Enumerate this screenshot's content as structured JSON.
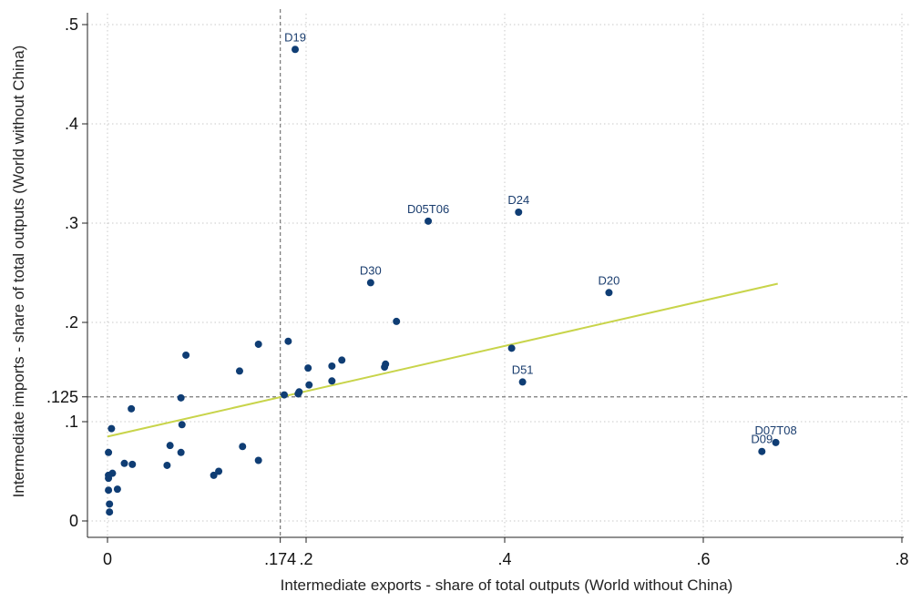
{
  "chart_data": {
    "type": "scatter",
    "xlabel": "Intermediate exports - share of total outputs (World without China)",
    "ylabel": "Intermediate imports - share of total outputs (World without China)",
    "xlim": [
      0,
      0.8
    ],
    "ylim": [
      0,
      0.5
    ],
    "x_ticks": [
      {
        "value": 0,
        "label": "0"
      },
      {
        "value": 0.174,
        "label": ".174"
      },
      {
        "value": 0.2,
        "label": ".2"
      },
      {
        "value": 0.4,
        "label": ".4"
      },
      {
        "value": 0.6,
        "label": ".6"
      },
      {
        "value": 0.8,
        "label": ".8"
      }
    ],
    "y_ticks": [
      {
        "value": 0,
        "label": "0"
      },
      {
        "value": 0.1,
        "label": ".1"
      },
      {
        "value": 0.125,
        "label": ".125"
      },
      {
        "value": 0.2,
        "label": ".2"
      },
      {
        "value": 0.3,
        "label": ".3"
      },
      {
        "value": 0.4,
        "label": ".4"
      },
      {
        "value": 0.5,
        "label": ".5"
      }
    ],
    "grid": true,
    "reference_lines": {
      "x": 0.174,
      "y": 0.125
    },
    "fit_line": {
      "x": [
        0,
        0.675
      ],
      "y": [
        0.085,
        0.239
      ],
      "color": "#c8d44a"
    },
    "point_color": "#0f3d74",
    "points": [
      {
        "x": 0.189,
        "y": 0.475,
        "label": "D19"
      },
      {
        "x": 0.323,
        "y": 0.302,
        "label": "D05T06"
      },
      {
        "x": 0.414,
        "y": 0.311,
        "label": "D24"
      },
      {
        "x": 0.265,
        "y": 0.24,
        "label": "D30"
      },
      {
        "x": 0.505,
        "y": 0.23,
        "label": "D20"
      },
      {
        "x": 0.418,
        "y": 0.14,
        "label": "D51"
      },
      {
        "x": 0.673,
        "y": 0.079,
        "label": "D07T08"
      },
      {
        "x": 0.659,
        "y": 0.07,
        "label": "D09"
      },
      {
        "x": 0.407,
        "y": 0.174
      },
      {
        "x": 0.291,
        "y": 0.201
      },
      {
        "x": 0.28,
        "y": 0.158
      },
      {
        "x": 0.279,
        "y": 0.155
      },
      {
        "x": 0.236,
        "y": 0.162
      },
      {
        "x": 0.226,
        "y": 0.156
      },
      {
        "x": 0.226,
        "y": 0.141
      },
      {
        "x": 0.203,
        "y": 0.137
      },
      {
        "x": 0.202,
        "y": 0.154
      },
      {
        "x": 0.193,
        "y": 0.13
      },
      {
        "x": 0.192,
        "y": 0.128
      },
      {
        "x": 0.182,
        "y": 0.181
      },
      {
        "x": 0.178,
        "y": 0.127
      },
      {
        "x": 0.152,
        "y": 0.178
      },
      {
        "x": 0.133,
        "y": 0.151
      },
      {
        "x": 0.152,
        "y": 0.061
      },
      {
        "x": 0.136,
        "y": 0.075
      },
      {
        "x": 0.112,
        "y": 0.05
      },
      {
        "x": 0.107,
        "y": 0.046
      },
      {
        "x": 0.079,
        "y": 0.167
      },
      {
        "x": 0.074,
        "y": 0.124
      },
      {
        "x": 0.075,
        "y": 0.097
      },
      {
        "x": 0.074,
        "y": 0.069
      },
      {
        "x": 0.063,
        "y": 0.076
      },
      {
        "x": 0.06,
        "y": 0.056
      },
      {
        "x": 0.024,
        "y": 0.113
      },
      {
        "x": 0.025,
        "y": 0.057
      },
      {
        "x": 0.017,
        "y": 0.058
      },
      {
        "x": 0.01,
        "y": 0.032
      },
      {
        "x": 0.004,
        "y": 0.093
      },
      {
        "x": 0.005,
        "y": 0.048
      },
      {
        "x": 0.001,
        "y": 0.069
      },
      {
        "x": 0.001,
        "y": 0.046
      },
      {
        "x": 0.001,
        "y": 0.043
      },
      {
        "x": 0.001,
        "y": 0.031
      },
      {
        "x": 0.002,
        "y": 0.017
      },
      {
        "x": 0.002,
        "y": 0.009
      }
    ]
  }
}
